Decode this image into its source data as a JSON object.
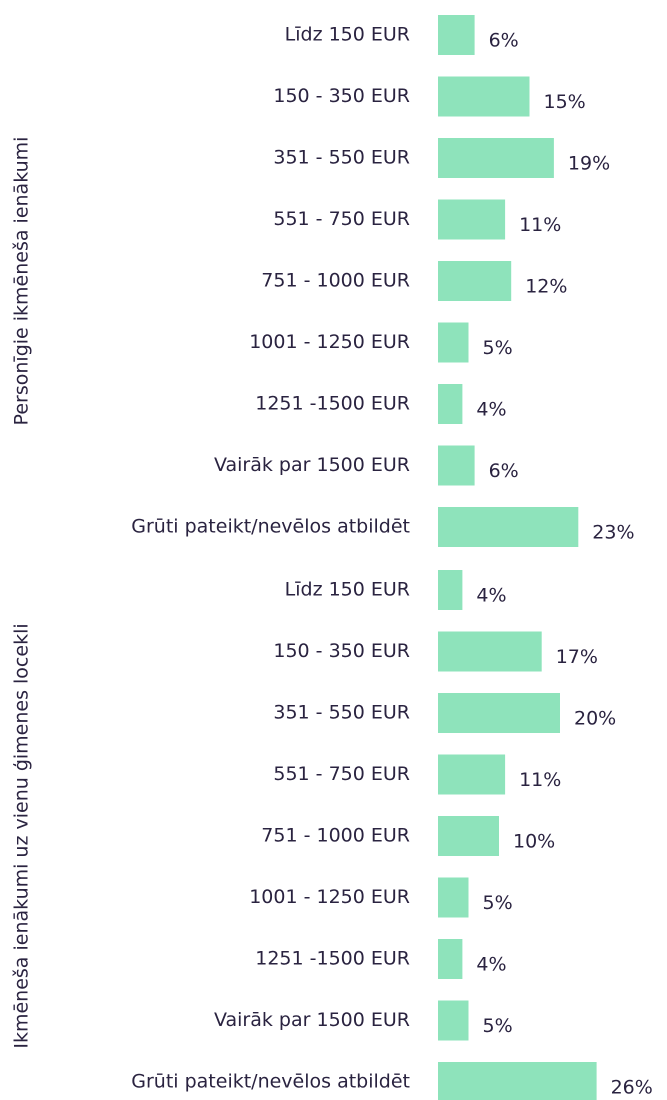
{
  "chart_data": [
    {
      "type": "bar",
      "orientation": "horizontal",
      "ylabel": "Personīgie ikmēneša ienākumi",
      "color": "#8ee3bb",
      "categories": [
        "Līdz 150 EUR",
        "150 - 350 EUR",
        "351 - 550 EUR",
        "551 - 750 EUR",
        "751 - 1000 EUR",
        "1001 - 1250 EUR",
        "1251 -1500 EUR",
        "Vairāk par 1500 EUR",
        "Grūti pateikt/nevēlos atbildēt"
      ],
      "values": [
        6,
        15,
        19,
        11,
        12,
        5,
        4,
        6,
        23
      ],
      "value_labels": [
        "6%",
        "15%",
        "19%",
        "11%",
        "12%",
        "5%",
        "4%",
        "6%",
        "23%"
      ]
    },
    {
      "type": "bar",
      "orientation": "horizontal",
      "ylabel": "Ikmēneša ienākumi uz vienu ģimenes locekli",
      "color": "#8ee3bb",
      "categories": [
        "Līdz 150 EUR",
        "150 - 350 EUR",
        "351 - 550 EUR",
        "551 - 750 EUR",
        "751 - 1000 EUR",
        "1001 - 1250 EUR",
        "1251 -1500 EUR",
        "Vairāk par 1500 EUR",
        "Grūti pateikt/nevēlos atbildēt"
      ],
      "values": [
        4,
        17,
        20,
        11,
        10,
        5,
        4,
        5,
        26
      ],
      "value_labels": [
        "4%",
        "17%",
        "20%",
        "11%",
        "10%",
        "5%",
        "4%",
        "5%",
        "26%"
      ]
    }
  ]
}
